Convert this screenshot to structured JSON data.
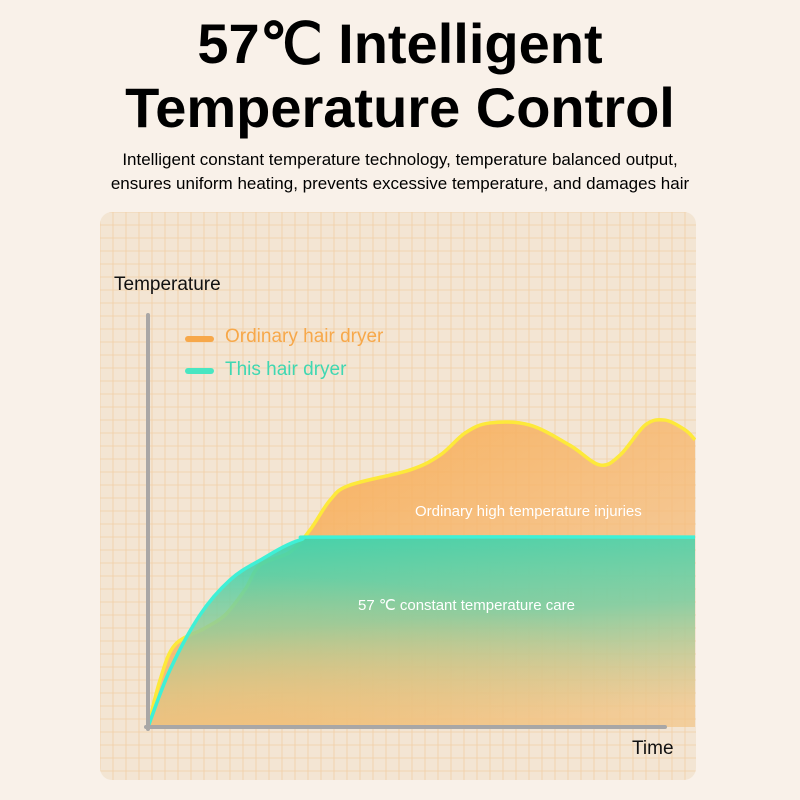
{
  "header": {
    "title_line1": "57℃ Intelligent",
    "title_line2": "Temperature Control",
    "subtitle_line1": "Intelligent constant temperature technology, temperature balanced output,",
    "subtitle_line2": "ensures uniform heating, prevents excessive temperature, and damages hair"
  },
  "chart_data": {
    "type": "area",
    "ylabel": "Temperature",
    "xlabel": "Time",
    "xlim": [
      0,
      100
    ],
    "ylim": [
      0,
      100
    ],
    "grid": true,
    "legend_position": "top-left",
    "series": [
      {
        "name": "Ordinary hair dryer",
        "color": "#f7a84a",
        "line_color": "#fde93a",
        "x": [
          0,
          2.2,
          4.9,
          10.4,
          14.1,
          17.7,
          20.5,
          26.0,
          29.6,
          33.3,
          36.9,
          47.9,
          53.4,
          58.0,
          62.5,
          69.8,
          77.1,
          82.6,
          86.3,
          90.9,
          94.5,
          98.2,
          100
        ],
        "y": [
          0,
          11.4,
          19.9,
          24.0,
          27.2,
          33.3,
          39.3,
          42.5,
          47.8,
          55.1,
          58.7,
          62.4,
          66.0,
          71.4,
          73.8,
          73.3,
          68.4,
          63.6,
          66.0,
          73.3,
          74.5,
          72.1,
          69.7
        ]
      },
      {
        "name": "This hair dryer",
        "color": "#4ad6b0",
        "line_color": "#3ff0d6",
        "x": [
          0,
          4.0,
          9.5,
          15.0,
          20.5,
          27.8,
          35.1,
          100
        ],
        "y": [
          0,
          13.8,
          27.2,
          35.7,
          40.5,
          45.4,
          46.1,
          46.1
        ]
      }
    ],
    "annotations": [
      "Ordinary high temperature injuries",
      "57 ℃ constant temperature care"
    ]
  }
}
